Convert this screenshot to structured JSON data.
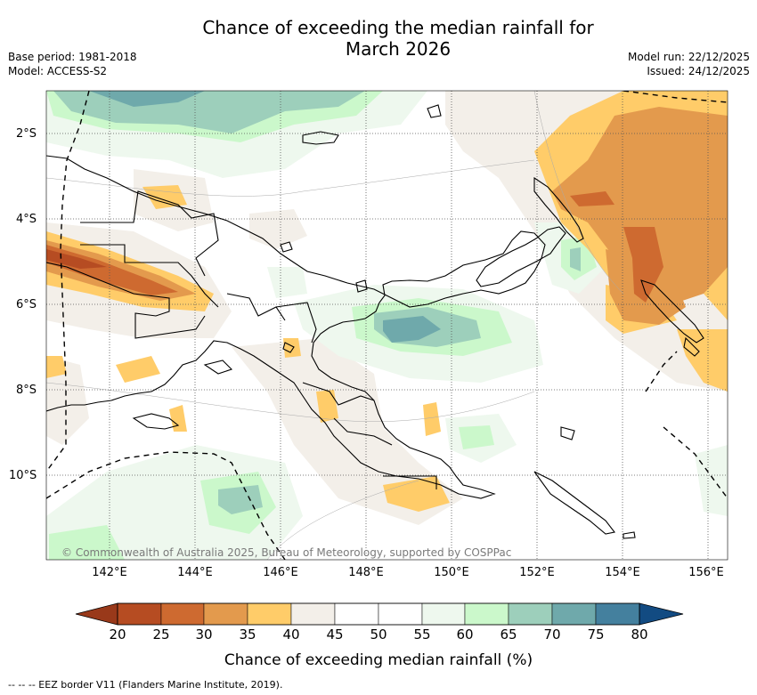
{
  "title_line1": "Chance of exceeding the median rainfall for",
  "title_line2": "March 2026",
  "meta": {
    "base_period": "Base period: 1981-2018",
    "model": "Model: ACCESS-S2",
    "model_run": "Model run: 22/12/2025",
    "issued": "Issued: 24/12/2025"
  },
  "lat_labels": [
    "2°S",
    "4°S",
    "6°S",
    "8°S",
    "10°S"
  ],
  "lon_labels": [
    "142°E",
    "144°E",
    "146°E",
    "148°E",
    "150°E",
    "152°E",
    "154°E",
    "156°E"
  ],
  "copyright": "© Commonwealth of Australia 2025, Bureau of Meteorology, supported by COSPPac",
  "colorbar": {
    "label": "Chance of exceeding median rainfall (%)",
    "ticks": [
      "20",
      "25",
      "30",
      "35",
      "40",
      "45",
      "50",
      "55",
      "60",
      "65",
      "70",
      "75",
      "80"
    ],
    "colors": [
      "#b64c22",
      "#ce6a30",
      "#e39a4d",
      "#ffcc69",
      "#f3efe9",
      "#ffffff",
      "#ffffff",
      "#eef8ee",
      "#cbf8cb",
      "#9dcfbb",
      "#6fa9ab",
      "#44809e"
    ],
    "under_color": "#99391a",
    "over_color": "#124b82"
  },
  "footer": "--  --  -- EEZ border V11 (Flanders Marine Institute, 2019)."
}
